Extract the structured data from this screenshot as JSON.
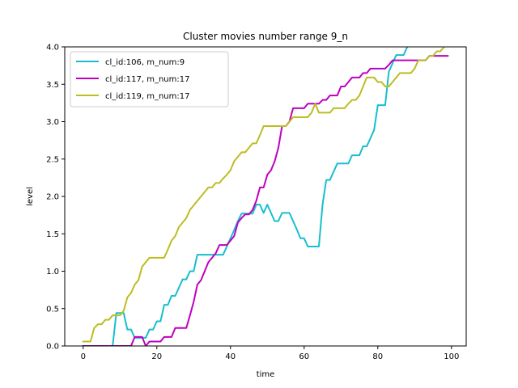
{
  "chart_data": {
    "type": "line",
    "title": "Cluster movies number range 9_n",
    "xlabel": "time",
    "ylabel": "level",
    "xlim": [
      -5,
      104
    ],
    "ylim": [
      0,
      4.0
    ],
    "xticks": [
      0,
      20,
      40,
      60,
      80,
      100
    ],
    "yticks": [
      0.0,
      0.5,
      1.0,
      1.5,
      2.0,
      2.5,
      3.0,
      3.5,
      4.0
    ],
    "xtick_labels": [
      "0",
      "20",
      "40",
      "60",
      "80",
      "100"
    ],
    "ytick_labels": [
      "0.0",
      "0.5",
      "1.0",
      "1.5",
      "2.0",
      "2.5",
      "3.0",
      "3.5",
      "4.0"
    ],
    "grid": false,
    "legend_position": "top-left",
    "series": [
      {
        "name": "cl_id:106, m_num:9",
        "color": "#17becf",
        "x": [
          0,
          8,
          9,
          11,
          12,
          13,
          14,
          15,
          16,
          17,
          18,
          19,
          20,
          21,
          22,
          23,
          24,
          25,
          26,
          27,
          28,
          29,
          30,
          31,
          32,
          38,
          40,
          41,
          42,
          43,
          44,
          45,
          46,
          47,
          48,
          49,
          50,
          51,
          52,
          53,
          54,
          55,
          56,
          57,
          58,
          59,
          60,
          61,
          62,
          63,
          64,
          65,
          66,
          67,
          68,
          69,
          70,
          71,
          72,
          73,
          74,
          75,
          76,
          77,
          78,
          79,
          80,
          81,
          82,
          83,
          84,
          85,
          86,
          87,
          88
        ],
        "y": [
          0,
          0,
          0.44,
          0.44,
          0.22,
          0.22,
          0.11,
          0.11,
          0.11,
          0.11,
          0.22,
          0.22,
          0.33,
          0.33,
          0.55,
          0.55,
          0.67,
          0.67,
          0.78,
          0.89,
          0.89,
          1.0,
          1.0,
          1.22,
          1.22,
          1.22,
          1.44,
          1.55,
          1.67,
          1.77,
          1.77,
          1.77,
          1.77,
          1.89,
          1.89,
          1.78,
          1.89,
          1.78,
          1.67,
          1.67,
          1.78,
          1.78,
          1.78,
          1.67,
          1.56,
          1.44,
          1.44,
          1.33,
          1.33,
          1.33,
          1.33,
          1.89,
          2.22,
          2.22,
          2.33,
          2.44,
          2.44,
          2.44,
          2.44,
          2.55,
          2.55,
          2.55,
          2.67,
          2.67,
          2.78,
          2.89,
          3.22,
          3.22,
          3.22,
          3.67,
          3.78,
          3.89,
          3.89,
          3.89,
          4.0
        ]
      },
      {
        "name": "cl_id:117, m_num:17",
        "color": "#bf00bf",
        "x": [
          0,
          13,
          14,
          15,
          16,
          17,
          18,
          19,
          20,
          21,
          22,
          23,
          24,
          25,
          26,
          27,
          28,
          29,
          30,
          31,
          32,
          33,
          34,
          35,
          36,
          37,
          38,
          39,
          40,
          41,
          42,
          43,
          44,
          45,
          46,
          47,
          48,
          49,
          50,
          51,
          52,
          53,
          54,
          55,
          56,
          57,
          58,
          59,
          60,
          61,
          62,
          63,
          64,
          65,
          66,
          67,
          68,
          69,
          70,
          71,
          72,
          73,
          74,
          75,
          76,
          77,
          78,
          79,
          80,
          81,
          82,
          83,
          84,
          85,
          86,
          87,
          88,
          89,
          90,
          91,
          92,
          93,
          94,
          95,
          96,
          97,
          98,
          99
        ],
        "y": [
          0,
          0,
          0.12,
          0.12,
          0.12,
          0,
          0.06,
          0.06,
          0.06,
          0.06,
          0.12,
          0.12,
          0.12,
          0.24,
          0.24,
          0.24,
          0.24,
          0.41,
          0.59,
          0.82,
          0.88,
          1.0,
          1.12,
          1.18,
          1.24,
          1.35,
          1.35,
          1.35,
          1.41,
          1.47,
          1.65,
          1.71,
          1.76,
          1.76,
          1.82,
          1.94,
          2.12,
          2.12,
          2.29,
          2.35,
          2.47,
          2.65,
          2.94,
          2.94,
          3.0,
          3.18,
          3.18,
          3.18,
          3.18,
          3.24,
          3.24,
          3.24,
          3.24,
          3.29,
          3.29,
          3.35,
          3.35,
          3.35,
          3.47,
          3.47,
          3.53,
          3.59,
          3.59,
          3.59,
          3.65,
          3.65,
          3.71,
          3.71,
          3.71,
          3.71,
          3.71,
          3.76,
          3.82,
          3.82,
          3.82,
          3.82,
          3.82,
          3.82,
          3.82,
          3.82,
          3.82,
          3.82,
          3.88,
          3.88,
          3.88,
          3.88,
          3.88,
          3.88
        ]
      },
      {
        "name": "cl_id:119, m_num:17",
        "color": "#bcbd22",
        "x": [
          0,
          2,
          3,
          4,
          5,
          6,
          7,
          8,
          9,
          10,
          11,
          12,
          13,
          14,
          15,
          16,
          17,
          18,
          19,
          20,
          21,
          22,
          23,
          24,
          25,
          26,
          27,
          28,
          29,
          30,
          31,
          32,
          33,
          34,
          35,
          36,
          37,
          38,
          39,
          40,
          41,
          42,
          43,
          44,
          45,
          46,
          47,
          48,
          49,
          50,
          51,
          52,
          53,
          54,
          55,
          56,
          57,
          58,
          59,
          60,
          61,
          62,
          63,
          64,
          65,
          66,
          67,
          68,
          69,
          70,
          71,
          72,
          73,
          74,
          75,
          76,
          77,
          78,
          79,
          80,
          81,
          82,
          83,
          84,
          85,
          86,
          87,
          88,
          89,
          90,
          91,
          92,
          93,
          94,
          95,
          96,
          97,
          98
        ],
        "y": [
          0.06,
          0.06,
          0.24,
          0.29,
          0.29,
          0.35,
          0.35,
          0.41,
          0.41,
          0.41,
          0.47,
          0.65,
          0.71,
          0.82,
          0.88,
          1.06,
          1.12,
          1.18,
          1.18,
          1.18,
          1.18,
          1.18,
          1.29,
          1.41,
          1.47,
          1.59,
          1.65,
          1.71,
          1.82,
          1.88,
          1.94,
          2.0,
          2.06,
          2.12,
          2.12,
          2.18,
          2.18,
          2.24,
          2.29,
          2.35,
          2.47,
          2.53,
          2.59,
          2.59,
          2.65,
          2.71,
          2.71,
          2.82,
          2.94,
          2.94,
          2.94,
          2.94,
          2.94,
          2.94,
          2.94,
          3.0,
          3.06,
          3.06,
          3.06,
          3.06,
          3.06,
          3.12,
          3.24,
          3.12,
          3.12,
          3.12,
          3.12,
          3.18,
          3.18,
          3.18,
          3.18,
          3.24,
          3.29,
          3.29,
          3.35,
          3.47,
          3.59,
          3.59,
          3.59,
          3.53,
          3.53,
          3.47,
          3.47,
          3.53,
          3.59,
          3.65,
          3.65,
          3.65,
          3.65,
          3.71,
          3.82,
          3.82,
          3.82,
          3.88,
          3.88,
          3.94,
          3.94,
          4.0
        ]
      }
    ]
  }
}
